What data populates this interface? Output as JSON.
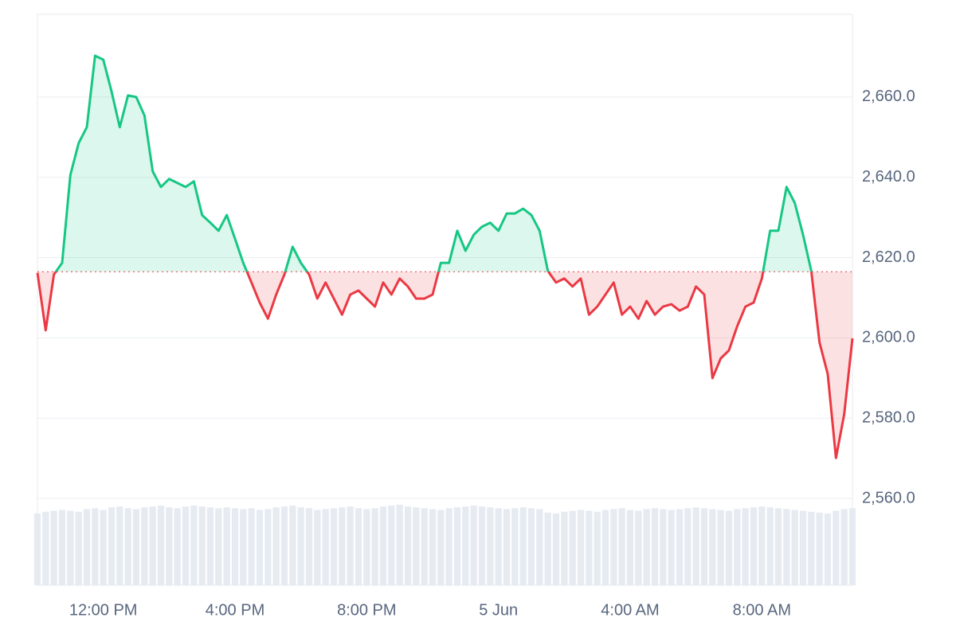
{
  "chart_data": {
    "type": "line",
    "categories": [
      null,
      null,
      null,
      null,
      null,
      null,
      null,
      null,
      "12:00 PM",
      null,
      null,
      null,
      null,
      null,
      null,
      null,
      null,
      null,
      null,
      null,
      null,
      null,
      null,
      null,
      "4:00 PM",
      null,
      null,
      null,
      null,
      null,
      null,
      null,
      null,
      null,
      null,
      null,
      null,
      null,
      null,
      null,
      "8:00 PM",
      null,
      null,
      null,
      null,
      null,
      null,
      null,
      null,
      null,
      null,
      null,
      null,
      null,
      null,
      null,
      "5 Jun",
      null,
      null,
      null,
      null,
      null,
      null,
      null,
      null,
      null,
      null,
      null,
      null,
      null,
      null,
      null,
      "4:00 AM",
      null,
      null,
      null,
      null,
      null,
      null,
      null,
      null,
      null,
      null,
      null,
      null,
      null,
      null,
      null,
      "8:00 AM",
      null,
      null,
      null,
      null,
      null,
      null,
      null,
      null,
      null,
      null,
      null
    ],
    "values": [
      2616.2,
      2601.9,
      2615.8,
      2618.7,
      2640.6,
      2648.5,
      2652.5,
      2670.3,
      2669.3,
      2661.4,
      2652.5,
      2660.4,
      2660.0,
      2655.4,
      2641.5,
      2637.6,
      2639.6,
      2638.6,
      2637.6,
      2639.0,
      2630.6,
      2628.7,
      2626.7,
      2630.6,
      2624.7,
      2618.7,
      2613.8,
      2608.8,
      2604.8,
      2610.8,
      2615.8,
      2622.7,
      2618.7,
      2615.8,
      2609.8,
      2613.8,
      2609.8,
      2605.8,
      2610.8,
      2611.8,
      2609.8,
      2607.8,
      2613.8,
      2610.8,
      2614.8,
      2612.8,
      2609.8,
      2609.8,
      2610.8,
      2618.7,
      2618.7,
      2626.7,
      2621.7,
      2625.7,
      2627.7,
      2628.7,
      2626.7,
      2631.0,
      2631.0,
      2632.2,
      2630.6,
      2626.7,
      2616.7,
      2613.8,
      2614.8,
      2612.8,
      2614.8,
      2605.8,
      2607.8,
      2610.8,
      2613.8,
      2605.8,
      2607.8,
      2604.8,
      2609.2,
      2605.8,
      2607.8,
      2608.4,
      2606.8,
      2607.8,
      2612.8,
      2610.8,
      2590.0,
      2594.9,
      2596.9,
      2602.9,
      2607.8,
      2608.8,
      2614.8,
      2626.7,
      2626.7,
      2637.6,
      2633.6,
      2625.7,
      2616.7,
      2598.9,
      2591.0,
      2570.1,
      2581.0,
      2599.9
    ],
    "baseline": 2616.5,
    "up_color": "#16c784",
    "down_color": "#ea3943",
    "ylim": [
      2538.4,
      2680.6
    ],
    "yticks": [
      {
        "value": 2560,
        "label": "2,560.0"
      },
      {
        "value": 2580,
        "label": "2,580.0"
      },
      {
        "value": 2600,
        "label": "2,600.0"
      },
      {
        "value": 2620,
        "label": "2,620.0"
      },
      {
        "value": 2640,
        "label": "2,640.0"
      },
      {
        "value": 2660,
        "label": "2,660.0"
      }
    ],
    "grid": true,
    "volume": {
      "color": "#e6ebf2",
      "ylim": [
        0,
        100
      ],
      "values": [
        82,
        84,
        85,
        86,
        85,
        84,
        87,
        88,
        86,
        89,
        90,
        88,
        87,
        89,
        90,
        91,
        89,
        88,
        90,
        91,
        90,
        89,
        88,
        89,
        88,
        87,
        88,
        86,
        87,
        89,
        90,
        91,
        89,
        88,
        86,
        87,
        88,
        89,
        90,
        88,
        87,
        88,
        90,
        91,
        92,
        90,
        89,
        88,
        87,
        86,
        88,
        89,
        90,
        91,
        90,
        89,
        88,
        87,
        88,
        89,
        88,
        87,
        83,
        82,
        84,
        85,
        86,
        85,
        84,
        86,
        87,
        88,
        86,
        85,
        87,
        88,
        87,
        86,
        87,
        88,
        89,
        88,
        87,
        86,
        85,
        87,
        88,
        89,
        90,
        89,
        88,
        87,
        86,
        85,
        84,
        83,
        82,
        85,
        87,
        88
      ]
    }
  }
}
